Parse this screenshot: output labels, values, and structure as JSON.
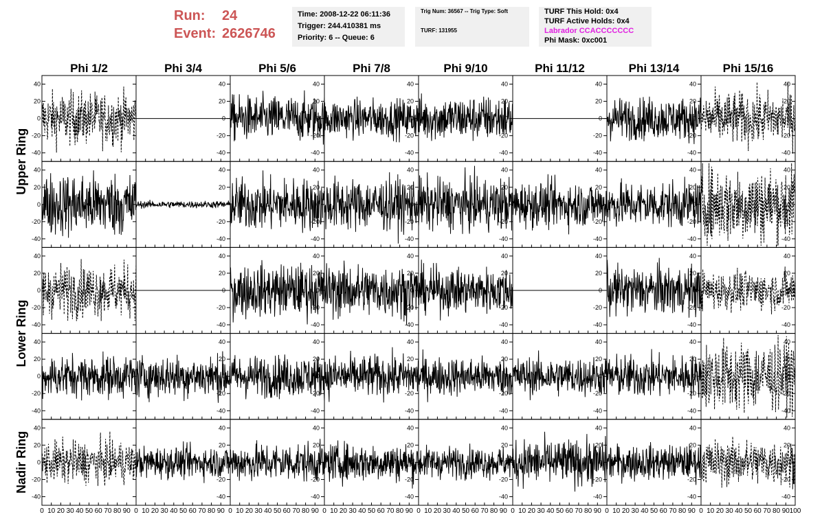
{
  "header": {
    "run_label": "Run:",
    "run_value": "24",
    "event_label": "Event:",
    "event_value": "2626746",
    "time": "Time: 2008-12-22 06:11:36",
    "trigger": "Trigger: 244.410381 ms",
    "priority": "Priority: 6 -- Queue: 6",
    "trig_num": "Trig Num: 36567 -- Trig Type: Soft",
    "turf": "TURF: 131955",
    "turf_this_hold": "TURF This Hold: 0x4",
    "turf_active_holds": "TURF Active Holds: 0x4",
    "labrador": "Labrador CCACCCCCCC",
    "phi_mask": "Phi Mask: 0xc001"
  },
  "colors": {
    "run_text": "#cc5555",
    "labrador_text": "#e020e0",
    "info_bg": "#f0f0f0",
    "trace": "#000000"
  },
  "chart_data": {
    "type": "line",
    "columns": [
      "Phi 1/2",
      "Phi 3/4",
      "Phi 5/6",
      "Phi 7/8",
      "Phi 9/10",
      "Phi 11/12",
      "Phi 13/14",
      "Phi 15/16"
    ],
    "rows": [
      "Upper Ring",
      "Lower Ring",
      "Nadir Ring"
    ],
    "x_range": [
      0,
      100
    ],
    "x_ticks": [
      "0",
      "10",
      "20",
      "30",
      "40",
      "50",
      "60",
      "70",
      "80",
      "90",
      "100"
    ],
    "y_range": [
      -50,
      50
    ],
    "y_ticks": [
      "-40",
      "-20",
      "0",
      "20",
      "40"
    ],
    "panels": [
      [
        {
          "amp": 15,
          "style": "dashed"
        },
        {
          "amp": 0,
          "style": "solid"
        },
        {
          "amp": 13,
          "style": "solid"
        },
        {
          "amp": 11,
          "style": "solid"
        },
        {
          "amp": 13,
          "style": "solid"
        },
        {
          "amp": 0,
          "style": "solid"
        },
        {
          "amp": 12,
          "style": "solid"
        },
        {
          "amp": 15,
          "style": "dashed"
        }
      ],
      [
        {
          "amp": 18,
          "style": "solid"
        },
        {
          "amp": 2,
          "style": "solid"
        },
        {
          "amp": 15,
          "style": "solid"
        },
        {
          "amp": 15,
          "style": "solid"
        },
        {
          "amp": 15,
          "style": "solid"
        },
        {
          "amp": 13,
          "style": "solid"
        },
        {
          "amp": 13,
          "style": "solid"
        },
        {
          "amp": 22,
          "style": "dashed"
        }
      ],
      [
        {
          "amp": 15,
          "style": "dashed"
        },
        {
          "amp": 0,
          "style": "solid"
        },
        {
          "amp": 15,
          "style": "solid"
        },
        {
          "amp": 15,
          "style": "solid"
        },
        {
          "amp": 13,
          "style": "solid"
        },
        {
          "amp": 0,
          "style": "solid"
        },
        {
          "amp": 14,
          "style": "solid"
        },
        {
          "amp": 11,
          "style": "dashed"
        }
      ],
      [
        {
          "amp": 12,
          "style": "solid"
        },
        {
          "amp": 12,
          "style": "solid"
        },
        {
          "amp": 12,
          "style": "solid"
        },
        {
          "amp": 12,
          "style": "solid"
        },
        {
          "amp": 11,
          "style": "solid"
        },
        {
          "amp": 11,
          "style": "solid"
        },
        {
          "amp": 12,
          "style": "solid"
        },
        {
          "amp": 20,
          "style": "dashed"
        }
      ],
      [
        {
          "amp": 12,
          "style": "dashed"
        },
        {
          "amp": 9,
          "style": "solid"
        },
        {
          "amp": 11,
          "style": "solid"
        },
        {
          "amp": 11,
          "style": "solid"
        },
        {
          "amp": 9,
          "style": "solid"
        },
        {
          "amp": 13,
          "style": "solid"
        },
        {
          "amp": 10,
          "style": "solid"
        },
        {
          "amp": 13,
          "style": "dashed"
        }
      ]
    ]
  }
}
